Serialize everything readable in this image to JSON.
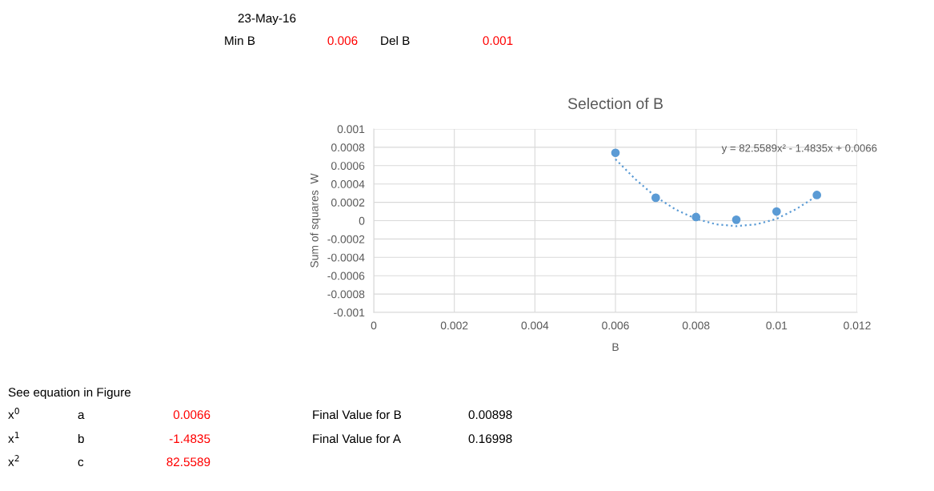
{
  "chart_data": {
    "type": "scatter",
    "title": "Selection of B",
    "xlabel": "B",
    "ylabel": "Sum of squares  W",
    "x": [
      0.006,
      0.007,
      0.008,
      0.009,
      0.01,
      0.011
    ],
    "series": [
      {
        "color": "#5b9bd5",
        "marker": "circle",
        "values": [
          0.00074,
          0.00025,
          4e-05,
          1e-05,
          0.0001,
          0.00028
        ]
      },
      {
        "type": "line",
        "color": "#5b9bd5",
        "line_style": "dotted",
        "marker": "none",
        "x": [
          0.006,
          0.0065,
          0.007,
          0.0075,
          0.008,
          0.0085,
          0.009,
          0.0095,
          0.01,
          0.0105,
          0.011
        ],
        "values": [
          0.00067,
          0.00045,
          0.00026,
          0.00012,
          2e-05,
          -4e-05,
          -6e-05,
          -4e-05,
          2e-05,
          0.00013,
          0.00027
        ]
      }
    ],
    "xlim": [
      0,
      0.012
    ],
    "xticks": [
      0,
      0.002,
      0.004,
      0.006,
      0.008,
      0.01,
      0.012
    ],
    "ylim": [
      -0.001,
      0.001
    ],
    "yticks": [
      -0.001,
      -0.0008,
      -0.0006,
      -0.0004,
      -0.0002,
      0,
      0.0002,
      0.0004,
      0.0006,
      0.0008,
      0.001
    ],
    "grid": true,
    "annotations": [
      "23-May-16",
      "Min B",
      "0.006",
      "Del B",
      "0.001",
      "See equation in Figure",
      "x$^{0}$",
      "a",
      "0.0066",
      "x$^{1}$",
      "b",
      "-1.4835",
      "x$^{2}$",
      "c",
      "82.5589",
      "Final Value for B",
      "0.00898",
      "Final Value for A",
      "0.16998",
      "y = 82.5589x² - 1.4835x + 0.0066"
    ]
  }
}
